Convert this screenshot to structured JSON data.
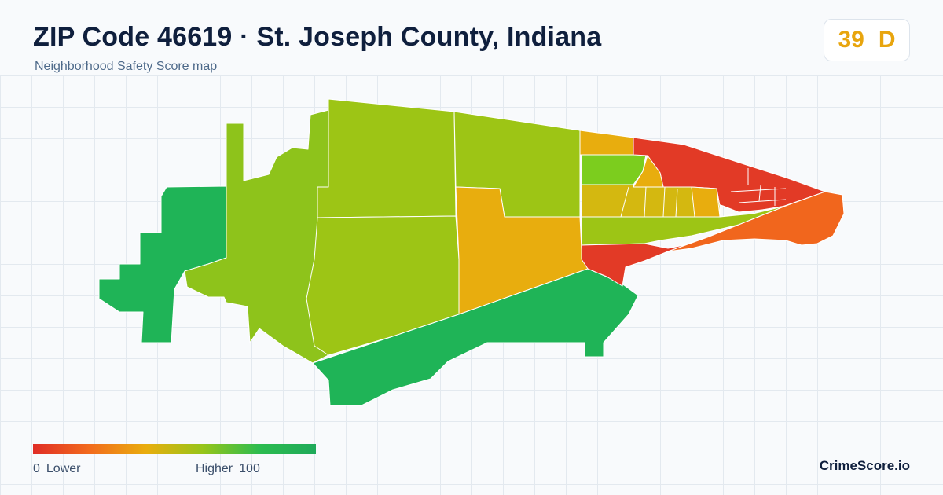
{
  "header": {
    "title": "ZIP Code 46619 · St. Joseph County, Indiana",
    "subtitle": "Neighborhood Safety Score map"
  },
  "score": {
    "value": "39",
    "grade": "D",
    "color": "#e8a50e"
  },
  "legend": {
    "min_value": "0",
    "min_label": "Lower",
    "max_label": "Higher",
    "max_value": "100",
    "colors": [
      "#e02d26",
      "#f26b1d",
      "#e9ad0d",
      "#97c51a",
      "#2cbc4f",
      "#1faa5a"
    ]
  },
  "brand": "CrimeScore.io",
  "map": {
    "fill_colors": {
      "dark_green": "#1fb457",
      "yellow_green": "#8ec31b",
      "lime": "#9dc515",
      "orange_yellow": "#e8ad0e",
      "mustard": "#d4b810",
      "red": "#e23a26",
      "red_orange": "#f1661d",
      "bright_green": "#7ccd1e"
    }
  }
}
